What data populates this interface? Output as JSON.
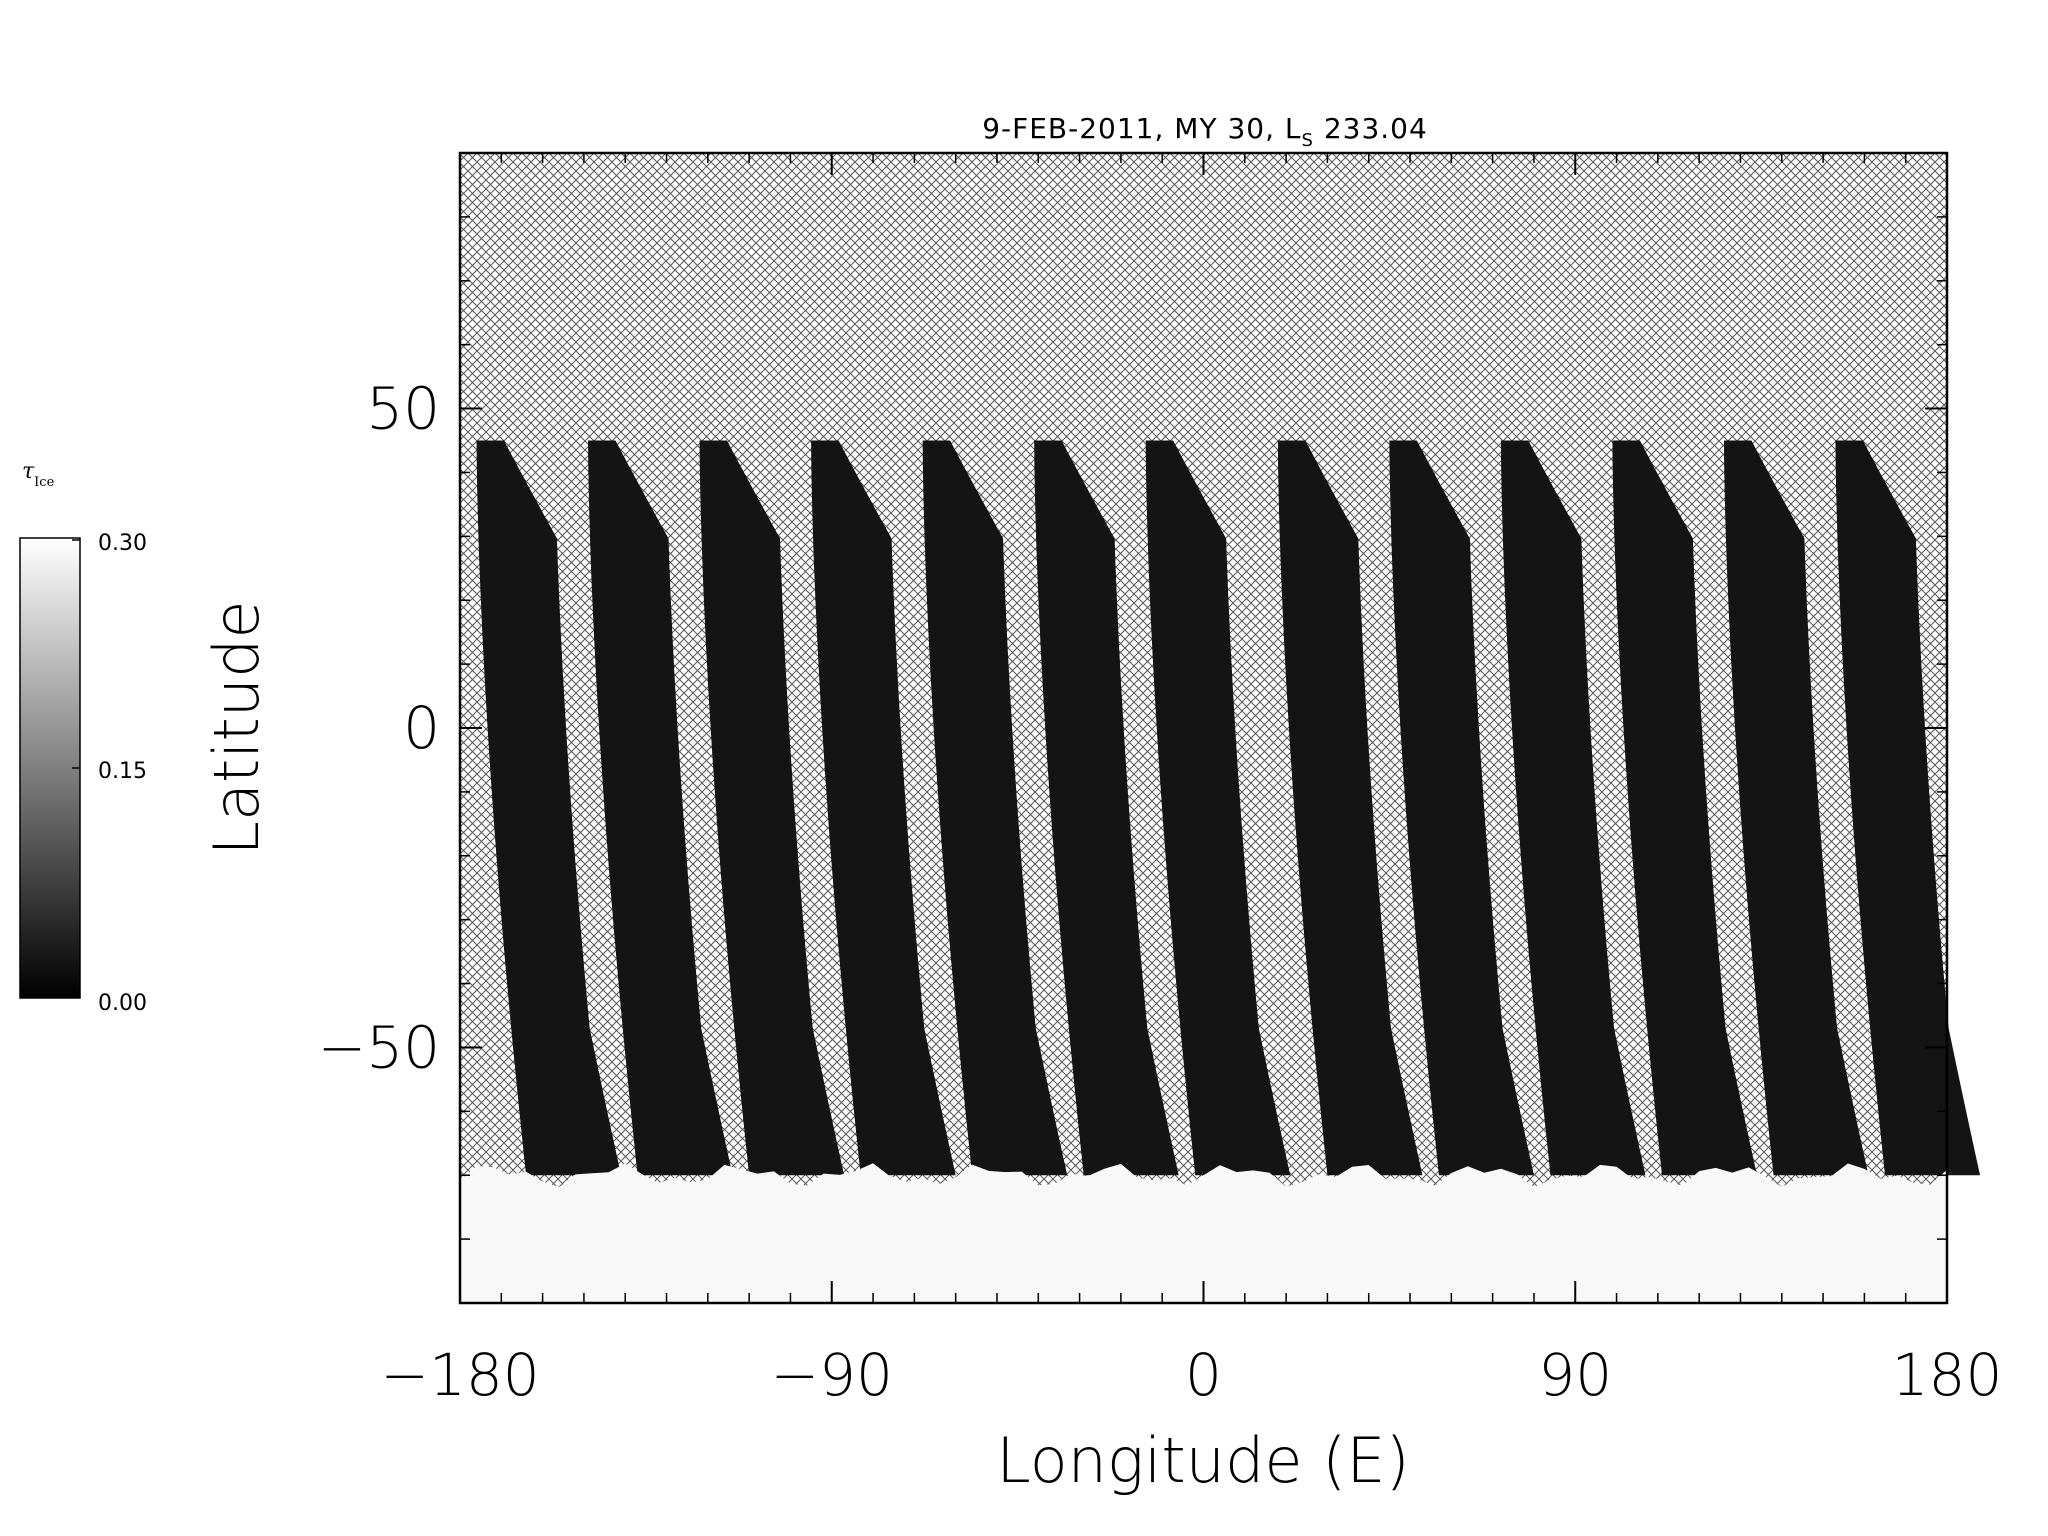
{
  "chart_data": {
    "type": "heatmap",
    "title": {
      "main": "9-FEB-2011, MY 30,  L",
      "subscript": "S",
      "suffix": " 233.04"
    },
    "xlabel": "Longitude (E)",
    "ylabel": "Latitude",
    "xlim": [
      -180,
      180
    ],
    "ylim": [
      -90,
      90
    ],
    "x_ticks": [
      "-180",
      "-90",
      "0",
      "90",
      "180"
    ],
    "y_ticks": [
      "50",
      "0",
      "-50"
    ],
    "x_tick_values": [
      -180,
      -90,
      0,
      90,
      180
    ],
    "y_tick_values": [
      50,
      0,
      -50
    ],
    "colorbar": {
      "label": "τ",
      "label_subscript": "Ice",
      "min_label": "0.00",
      "mid_label": "0.15",
      "max_label": "0.30",
      "min": 0.0,
      "max": 0.3
    },
    "data_description": "Ice optical depth swaths; hatched = no data",
    "swath_top_lats": [
      45,
      45,
      45,
      45,
      45,
      45,
      45,
      45,
      45,
      45,
      45,
      45,
      45
    ],
    "swath_start_lons": [
      -176,
      -149,
      -122,
      -95,
      -68,
      -41,
      -14,
      18,
      45,
      72,
      99,
      126,
      153
    ],
    "polar_cap_lat": -70,
    "colors": {
      "hatch": "#555555",
      "swath": "#141414",
      "cap": "#f8f8f8",
      "background": "#ffffff"
    }
  }
}
